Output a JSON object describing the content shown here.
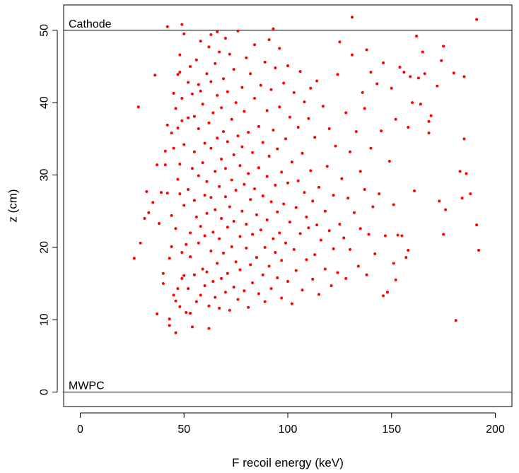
{
  "chart_data": {
    "type": "scatter",
    "title": "",
    "xlabel": "F recoil energy (keV)",
    "ylabel": "z (cm)",
    "xlim": [
      -8,
      208
    ],
    "ylim": [
      -2,
      53.5
    ],
    "x_ticks": [
      0,
      50,
      100,
      150,
      200
    ],
    "y_ticks": [
      0,
      10,
      20,
      30,
      40,
      50
    ],
    "grid": false,
    "point_color": "#ff0000",
    "reference_lines": [
      {
        "y": 50,
        "label": "Cathode"
      },
      {
        "y": 0,
        "label": "MWPC"
      }
    ],
    "points": [
      [
        26,
        18.5
      ],
      [
        28,
        39.4
      ],
      [
        29,
        20.6
      ],
      [
        31,
        24.0
      ],
      [
        32,
        27.7
      ],
      [
        33,
        24.8
      ],
      [
        35,
        26.2
      ],
      [
        36,
        43.8
      ],
      [
        37,
        31.4
      ],
      [
        37,
        10.8
      ],
      [
        38,
        23.3
      ],
      [
        39,
        27.6
      ],
      [
        40,
        16.4
      ],
      [
        40,
        15.0
      ],
      [
        41,
        31.4
      ],
      [
        41,
        33.3
      ],
      [
        42,
        36.9
      ],
      [
        42,
        27.5
      ],
      [
        42,
        50.5
      ],
      [
        43,
        9.2
      ],
      [
        43,
        10.1
      ],
      [
        43,
        18.5
      ],
      [
        44,
        20.1
      ],
      [
        44,
        24.4
      ],
      [
        44,
        35.8
      ],
      [
        45,
        41.3
      ],
      [
        45,
        33.7
      ],
      [
        45,
        13.4
      ],
      [
        46,
        12.6
      ],
      [
        46,
        8.2
      ],
      [
        46,
        22.6
      ],
      [
        46,
        39.2
      ],
      [
        47,
        14.3
      ],
      [
        47,
        43.9
      ],
      [
        47,
        29.4
      ],
      [
        47,
        36.5
      ],
      [
        48,
        44.2
      ],
      [
        48,
        46.6
      ],
      [
        48,
        31.5
      ],
      [
        48,
        27.4
      ],
      [
        48,
        11.8
      ],
      [
        49,
        15.7
      ],
      [
        49,
        19.3
      ],
      [
        49,
        37.5
      ],
      [
        49,
        40.6
      ],
      [
        49,
        50.8
      ],
      [
        50,
        49.5
      ],
      [
        50,
        25.8
      ],
      [
        50,
        34.2
      ],
      [
        50,
        16.1
      ],
      [
        51,
        11.0
      ],
      [
        51,
        20.4
      ],
      [
        52,
        28.0
      ],
      [
        52,
        37.9
      ],
      [
        52,
        42.8
      ],
      [
        52,
        14.3
      ],
      [
        53,
        22.0
      ],
      [
        53,
        10.9
      ],
      [
        53,
        18.7
      ],
      [
        53,
        45.0
      ],
      [
        54,
        41.2
      ],
      [
        54,
        30.9
      ],
      [
        54,
        9.0
      ],
      [
        55,
        33.2
      ],
      [
        55,
        16.2
      ],
      [
        55,
        26.5
      ],
      [
        55,
        38.1
      ],
      [
        56,
        12.5
      ],
      [
        56,
        24.2
      ],
      [
        56,
        45.9
      ],
      [
        57,
        20.6
      ],
      [
        57,
        29.9
      ],
      [
        57,
        42.5
      ],
      [
        57,
        36.4
      ],
      [
        58,
        13.4
      ],
      [
        58,
        22.9
      ],
      [
        58,
        41.6
      ],
      [
        58,
        48.5
      ],
      [
        59,
        17.0
      ],
      [
        59,
        31.7
      ],
      [
        59,
        39.8
      ],
      [
        60,
        27.2
      ],
      [
        60,
        14.7
      ],
      [
        60,
        21.6
      ],
      [
        60,
        34.4
      ],
      [
        61,
        44.0
      ],
      [
        61,
        16.6
      ],
      [
        61,
        24.7
      ],
      [
        61,
        29.1
      ],
      [
        62,
        37.2
      ],
      [
        62,
        11.9
      ],
      [
        62,
        8.8
      ],
      [
        62,
        47.7
      ],
      [
        63,
        19.5
      ],
      [
        63,
        26.9
      ],
      [
        63,
        33.7
      ],
      [
        63,
        42.9
      ],
      [
        63,
        49.4
      ],
      [
        64,
        15.3
      ],
      [
        64,
        22.1
      ],
      [
        64,
        38.6
      ],
      [
        65,
        30.5
      ],
      [
        65,
        13.1
      ],
      [
        65,
        45.4
      ],
      [
        65,
        25.2
      ],
      [
        66,
        17.8
      ],
      [
        66,
        35.1
      ],
      [
        66,
        41.0
      ],
      [
        66,
        49.8
      ],
      [
        67,
        21.2
      ],
      [
        67,
        28.4
      ],
      [
        67,
        11.6
      ],
      [
        67,
        47.0
      ],
      [
        68,
        32.2
      ],
      [
        68,
        15.7
      ],
      [
        68,
        39.3
      ],
      [
        68,
        24.0
      ],
      [
        69,
        19.2
      ],
      [
        69,
        43.3
      ],
      [
        69,
        36.0
      ],
      [
        70,
        27.0
      ],
      [
        70,
        13.8
      ],
      [
        70,
        48.9
      ],
      [
        70,
        30.9
      ],
      [
        71,
        22.8
      ],
      [
        71,
        16.4
      ],
      [
        71,
        41.5
      ],
      [
        71,
        34.6
      ],
      [
        72,
        25.6
      ],
      [
        72,
        11.3
      ],
      [
        72,
        46.7
      ],
      [
        73,
        29.3
      ],
      [
        73,
        20.1
      ],
      [
        73,
        37.7
      ],
      [
        74,
        14.5
      ],
      [
        74,
        32.8
      ],
      [
        74,
        44.6
      ],
      [
        74,
        23.6
      ],
      [
        75,
        18.0
      ],
      [
        75,
        27.9
      ],
      [
        75,
        40.0
      ],
      [
        76,
        12.8
      ],
      [
        76,
        35.4
      ],
      [
        76,
        49.9
      ],
      [
        77,
        21.5
      ],
      [
        77,
        31.3
      ],
      [
        77,
        16.9
      ],
      [
        78,
        25.0
      ],
      [
        78,
        42.1
      ],
      [
        78,
        33.9
      ],
      [
        79,
        14.0
      ],
      [
        79,
        28.7
      ],
      [
        79,
        38.8
      ],
      [
        80,
        19.9
      ],
      [
        80,
        46.2
      ],
      [
        80,
        23.2
      ],
      [
        81,
        30.2
      ],
      [
        81,
        11.7
      ],
      [
        81,
        35.9
      ],
      [
        82,
        26.6
      ],
      [
        82,
        17.6
      ],
      [
        82,
        44.0
      ],
      [
        83,
        21.8
      ],
      [
        83,
        33.1
      ],
      [
        83,
        15.1
      ],
      [
        84,
        40.6
      ],
      [
        84,
        28.1
      ],
      [
        84,
        48.0
      ],
      [
        85,
        18.6
      ],
      [
        85,
        24.5
      ],
      [
        86,
        36.7
      ],
      [
        86,
        13.6
      ],
      [
        86,
        31.0
      ],
      [
        87,
        22.4
      ],
      [
        87,
        42.4
      ],
      [
        88,
        27.1
      ],
      [
        88,
        16.2
      ],
      [
        88,
        34.5
      ],
      [
        89,
        20.0
      ],
      [
        89,
        45.6
      ],
      [
        89,
        12.5
      ],
      [
        90,
        29.8
      ],
      [
        90,
        38.9
      ],
      [
        90,
        23.8
      ],
      [
        91,
        17.4
      ],
      [
        91,
        48.7
      ],
      [
        91,
        32.6
      ],
      [
        92,
        26.3
      ],
      [
        92,
        14.3
      ],
      [
        92,
        41.8
      ],
      [
        93,
        21.2
      ],
      [
        93,
        36.2
      ],
      [
        93,
        50.2
      ],
      [
        94,
        19.3
      ],
      [
        94,
        28.6
      ],
      [
        94,
        44.8
      ],
      [
        95,
        24.9
      ],
      [
        95,
        15.8
      ],
      [
        95,
        33.6
      ],
      [
        96,
        22.0
      ],
      [
        96,
        39.4
      ],
      [
        96,
        47.5
      ],
      [
        97,
        30.4
      ],
      [
        97,
        18.2
      ],
      [
        97,
        13.0
      ],
      [
        98,
        26.0
      ],
      [
        98,
        42.7
      ],
      [
        99,
        35.0
      ],
      [
        99,
        20.6
      ],
      [
        100,
        28.9
      ],
      [
        100,
        15.3
      ],
      [
        100,
        45.1
      ],
      [
        101,
        23.5
      ],
      [
        101,
        38.0
      ],
      [
        102,
        12.2
      ],
      [
        102,
        31.8
      ],
      [
        103,
        19.7
      ],
      [
        103,
        41.4
      ],
      [
        104,
        25.5
      ],
      [
        104,
        16.8
      ],
      [
        105,
        36.6
      ],
      [
        105,
        29.2
      ],
      [
        106,
        21.9
      ],
      [
        106,
        44.3
      ],
      [
        107,
        14.1
      ],
      [
        107,
        33.0
      ],
      [
        108,
        27.6
      ],
      [
        108,
        40.1
      ],
      [
        109,
        18.3
      ],
      [
        109,
        24.2
      ],
      [
        110,
        37.8
      ],
      [
        110,
        22.7
      ],
      [
        111,
        30.6
      ],
      [
        111,
        42.0
      ],
      [
        112,
        15.6
      ],
      [
        112,
        26.4
      ],
      [
        113,
        35.2
      ],
      [
        113,
        19.0
      ],
      [
        114,
        23.1
      ],
      [
        114,
        43.0
      ],
      [
        115,
        13.5
      ],
      [
        115,
        28.3
      ],
      [
        116,
        21.0
      ],
      [
        117,
        39.5
      ],
      [
        118,
        25.0
      ],
      [
        118,
        17.0
      ],
      [
        119,
        31.2
      ],
      [
        120,
        22.3
      ],
      [
        120,
        36.4
      ],
      [
        121,
        14.7
      ],
      [
        122,
        27.2
      ],
      [
        122,
        19.8
      ],
      [
        123,
        34.0
      ],
      [
        124,
        43.9
      ],
      [
        124,
        16.5
      ],
      [
        125,
        23.2
      ],
      [
        125,
        48.4
      ],
      [
        126,
        29.5
      ],
      [
        127,
        21.3
      ],
      [
        128,
        38.6
      ],
      [
        128,
        15.7
      ],
      [
        129,
        26.8
      ],
      [
        130,
        33.2
      ],
      [
        130,
        19.7
      ],
      [
        131,
        46.6
      ],
      [
        131,
        51.8
      ],
      [
        132,
        24.8
      ],
      [
        133,
        36.0
      ],
      [
        134,
        17.4
      ],
      [
        135,
        22.6
      ],
      [
        135,
        30.5
      ],
      [
        136,
        41.4
      ],
      [
        137,
        28.0
      ],
      [
        137,
        39.2
      ],
      [
        138,
        16.2
      ],
      [
        138,
        47.3
      ],
      [
        139,
        21.8
      ],
      [
        140,
        33.7
      ],
      [
        140,
        44.2
      ],
      [
        141,
        25.6
      ],
      [
        142,
        19.1
      ],
      [
        143,
        42.6
      ],
      [
        144,
        27.4
      ],
      [
        145,
        36.1
      ],
      [
        146,
        13.3
      ],
      [
        146,
        45.5
      ],
      [
        147,
        21.6
      ],
      [
        148,
        13.8
      ],
      [
        149,
        31.9
      ],
      [
        150,
        42.0
      ],
      [
        151,
        25.9
      ],
      [
        151,
        17.8
      ],
      [
        152,
        37.7
      ],
      [
        152,
        15.5
      ],
      [
        153,
        21.7
      ],
      [
        154,
        44.9
      ],
      [
        155,
        21.6
      ],
      [
        156,
        44.2
      ],
      [
        157,
        18.6
      ],
      [
        158,
        36.6
      ],
      [
        158,
        19.6
      ],
      [
        159,
        43.6
      ],
      [
        160,
        40.0
      ],
      [
        161,
        27.8
      ],
      [
        162,
        49.2
      ],
      [
        163,
        43.4
      ],
      [
        164,
        39.8
      ],
      [
        165,
        47.0
      ],
      [
        166,
        44.0
      ],
      [
        168,
        35.8
      ],
      [
        168,
        37.4
      ],
      [
        169,
        38.2
      ],
      [
        172,
        42.3
      ],
      [
        173,
        26.4
      ],
      [
        174,
        45.8
      ],
      [
        175,
        47.8
      ],
      [
        175,
        21.8
      ],
      [
        176,
        25.2
      ],
      [
        180,
        44.1
      ],
      [
        181,
        9.9
      ],
      [
        183,
        30.5
      ],
      [
        184,
        26.8
      ],
      [
        185,
        35.0
      ],
      [
        185,
        43.6
      ],
      [
        186,
        30.2
      ],
      [
        188,
        27.4
      ],
      [
        191,
        23.1
      ],
      [
        191,
        51.5
      ],
      [
        192,
        19.6
      ]
    ]
  }
}
